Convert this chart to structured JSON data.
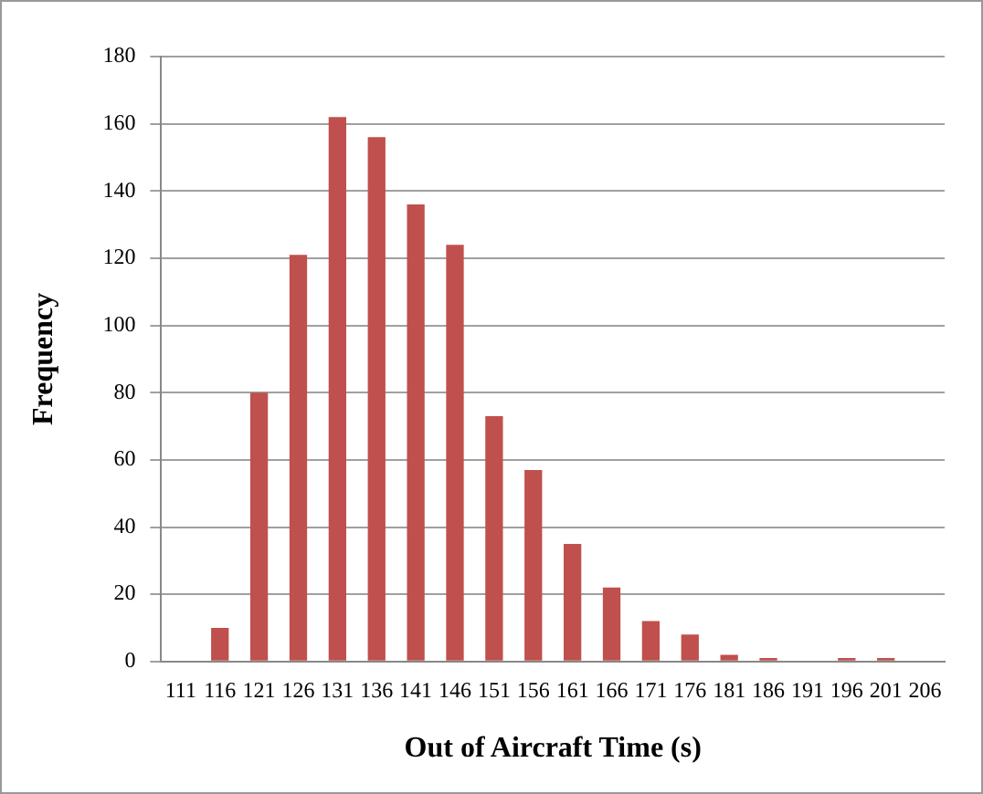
{
  "chart_data": {
    "type": "bar",
    "xlabel": "Out of Aircraft Time (s)",
    "ylabel": "Frequency",
    "categories": [
      "111",
      "116",
      "121",
      "126",
      "131",
      "136",
      "141",
      "146",
      "151",
      "156",
      "161",
      "166",
      "171",
      "176",
      "181",
      "186",
      "191",
      "196",
      "201",
      "206"
    ],
    "values": [
      0,
      10,
      80,
      121,
      162,
      156,
      136,
      124,
      73,
      57,
      35,
      22,
      12,
      8,
      2,
      1,
      0,
      1,
      1,
      0
    ],
    "color": "#c0504d",
    "ylim": [
      0,
      180
    ],
    "yticks": [
      0,
      20,
      40,
      60,
      80,
      100,
      120,
      140,
      160,
      180
    ],
    "grid": "y",
    "legend": false
  }
}
